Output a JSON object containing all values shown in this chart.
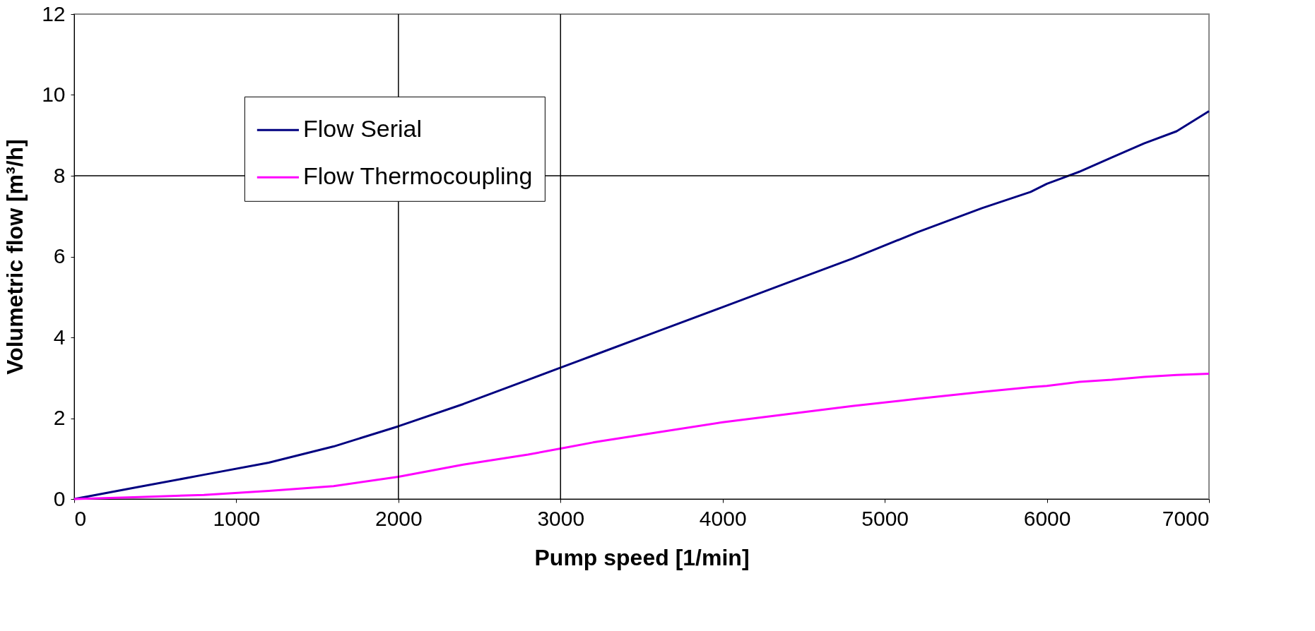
{
  "chart_data": {
    "type": "line",
    "xlabel": "Pump speed [1/min]",
    "ylabel": "Volumetric flow [m³/h]",
    "xlim": [
      0,
      7000
    ],
    "xticks": [
      0,
      1000,
      2000,
      3000,
      4000,
      5000,
      6000,
      7000
    ],
    "ylim": [
      0,
      12
    ],
    "yticks": [
      0,
      2,
      4,
      6,
      8,
      10,
      12
    ],
    "grid": false,
    "legend": "top left",
    "marker": "none",
    "line_style": "solid",
    "x": [
      0,
      400,
      800,
      1200,
      1600,
      2000,
      2400,
      2800,
      3000,
      3200,
      3600,
      4000,
      4400,
      4800,
      5200,
      5600,
      5900,
      6000,
      6200,
      6400,
      6600,
      6800,
      7000
    ],
    "series": [
      {
        "name": "Flow Serial",
        "color": "#000080",
        "values": [
          0,
          0.3,
          0.6,
          0.9,
          1.3,
          1.8,
          2.35,
          2.95,
          3.25,
          3.55,
          4.15,
          4.75,
          5.35,
          5.95,
          6.6,
          7.2,
          7.6,
          7.8,
          8.1,
          8.45,
          8.8,
          9.1,
          9.6
        ]
      },
      {
        "name": "Flow Thermocoupling",
        "color": "#ff00ff",
        "values": [
          0,
          0.05,
          0.1,
          0.2,
          0.32,
          0.55,
          0.85,
          1.1,
          1.25,
          1.4,
          1.65,
          1.9,
          2.1,
          2.3,
          2.48,
          2.65,
          2.77,
          2.8,
          2.9,
          2.95,
          3.02,
          3.07,
          3.1
        ]
      }
    ],
    "ref_lines": [
      {
        "axis": "x",
        "value": 2000,
        "label": null
      },
      {
        "axis": "x",
        "value": 3000,
        "label": null
      },
      {
        "axis": "y",
        "value": 8,
        "label": null
      }
    ]
  }
}
